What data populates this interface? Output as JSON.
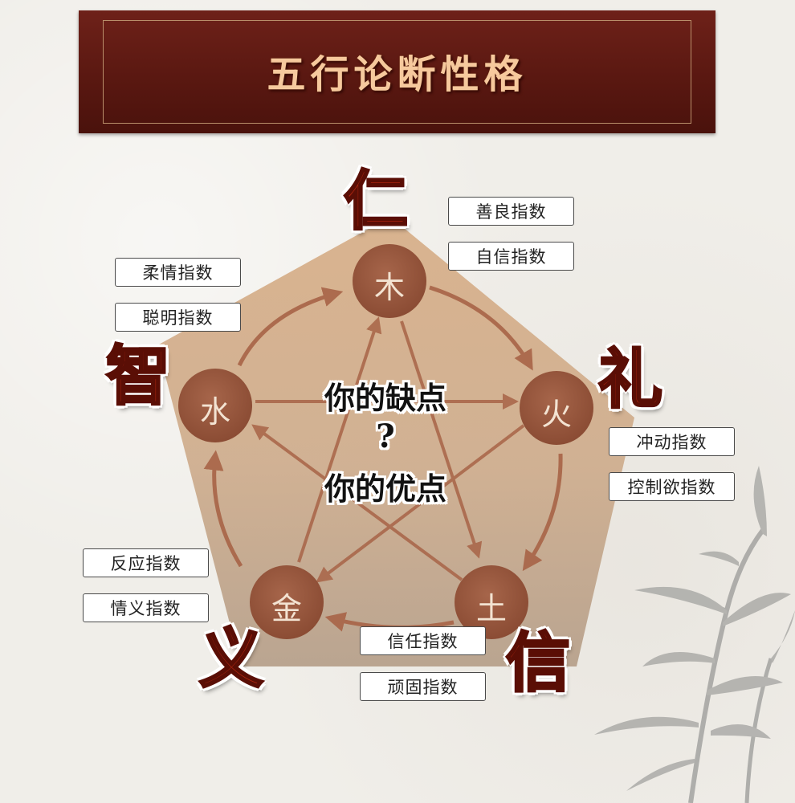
{
  "title": "五行论断性格",
  "elements": {
    "wood": "木",
    "fire": "火",
    "earth": "土",
    "metal": "金",
    "water": "水"
  },
  "virtues": {
    "ren": "仁",
    "li": "礼",
    "xin": "信",
    "yi": "义",
    "zhi": "智"
  },
  "center": {
    "line1": "你的缺点",
    "question": "?",
    "line2": "你的优点"
  },
  "labels": {
    "ren_1": "善良指数",
    "ren_2": "自信指数",
    "zhi_1": "柔情指数",
    "zhi_2": "聪明指数",
    "li_1": "冲动指数",
    "li_2": "控制欲指数",
    "yi_1": "反应指数",
    "yi_2": "情义指数",
    "xin_1": "信任指数",
    "xin_2": "顽固指数"
  },
  "colors": {
    "banner": "#5a1811",
    "title_text": "#f6c99d",
    "virtue_red": "#a9240f",
    "element_circle": "#9a5a3f",
    "pentagon_top": "#d6b08a",
    "pentagon_bottom": "#b59a80",
    "arrow": "#a86447"
  }
}
